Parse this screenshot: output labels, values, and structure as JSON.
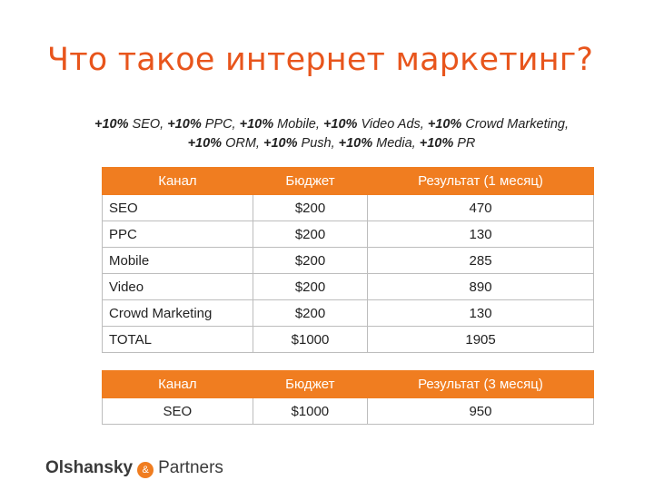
{
  "slide": {
    "title": "Что такое интернет маркетинг?"
  },
  "subtitle": {
    "line1": [
      {
        "pct": "+10%",
        "label": " SEO, "
      },
      {
        "pct": "+10%",
        "label": " PPC, "
      },
      {
        "pct": "+10%",
        "label": " Mobile, "
      },
      {
        "pct": "+10%",
        "label": " Video Ads, "
      },
      {
        "pct": "+10%",
        "label": " Crowd Marketing,"
      }
    ],
    "line2": [
      {
        "pct": "+10%",
        "label": " ORM, "
      },
      {
        "pct": "+10%",
        "label": " Push, "
      },
      {
        "pct": "+10%",
        "label": " Media, "
      },
      {
        "pct": "+10%",
        "label": " PR"
      }
    ]
  },
  "monthly_table": {
    "headers": [
      "Канал",
      "Бюджет",
      "Результат (1 месяц)"
    ],
    "rows": [
      [
        "SEO",
        "$200",
        "470"
      ],
      [
        "PPC",
        "$200",
        "130"
      ],
      [
        "Mobile",
        "$200",
        "285"
      ],
      [
        "Video",
        "$200",
        "890"
      ],
      [
        "Crowd Marketing",
        "$200",
        "130"
      ],
      [
        "TOTAL",
        "$1000",
        "1905"
      ]
    ]
  },
  "quarterly_table": {
    "headers": [
      "Канал",
      "Бюджет",
      "Результат (3 месяц)"
    ],
    "rows": [
      [
        "SEO",
        "$1000",
        "950"
      ]
    ]
  },
  "logo": {
    "name": "Olshansky",
    "ampersand": "&",
    "partners": "Partners",
    "accent_color": "#f07d20"
  },
  "colors": {
    "title": "#e8551c",
    "header_bg": "#f07d20",
    "header_text": "#ffffff",
    "border": "#bdbdbd"
  }
}
